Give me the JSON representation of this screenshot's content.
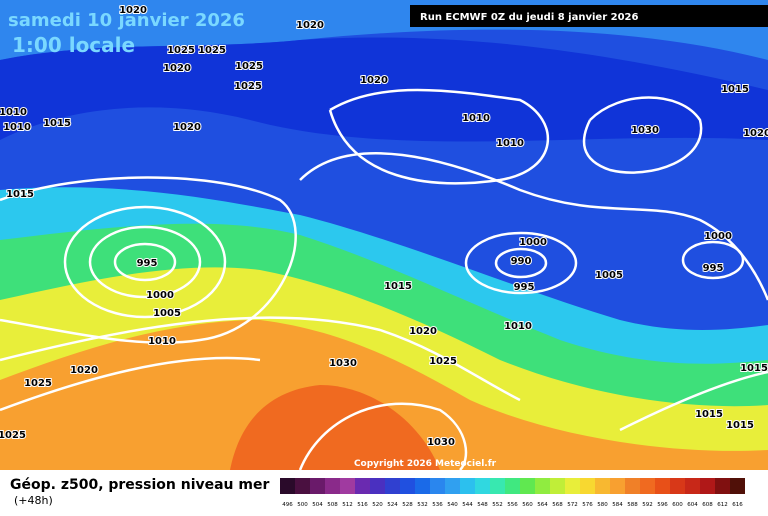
{
  "header": {
    "title": "samedi 10 janvier 2026",
    "time": "1:00 locale",
    "run": "Run ECMWF 0Z du jeudi 8 janvier 2026"
  },
  "isobar_labels": [
    "1020",
    "1020",
    "1025",
    "1025",
    "1020",
    "1025",
    "1025",
    "1020",
    "1010",
    "1010",
    "1015",
    "1020",
    "1010",
    "1010",
    "1030",
    "1015",
    "1020",
    "1015",
    "995",
    "1000",
    "1005",
    "1010",
    "1015",
    "1000",
    "990",
    "995",
    "1005",
    "1000",
    "995",
    "1010",
    "1020",
    "1025",
    "1030",
    "1020",
    "1025",
    "1025",
    "1030",
    "1015",
    "1015",
    "1015"
  ],
  "copyright": "Copyright 2026 Meteociel.fr",
  "legend": {
    "title": "Géop. z500, pression niveau mer",
    "lead": "(+48h)",
    "scale": [
      496,
      500,
      504,
      508,
      512,
      516,
      520,
      524,
      528,
      532,
      536,
      540,
      544,
      548,
      552,
      556,
      560,
      564,
      568,
      572,
      576,
      580,
      584,
      588,
      592,
      596,
      600,
      604,
      608,
      612,
      616
    ]
  }
}
